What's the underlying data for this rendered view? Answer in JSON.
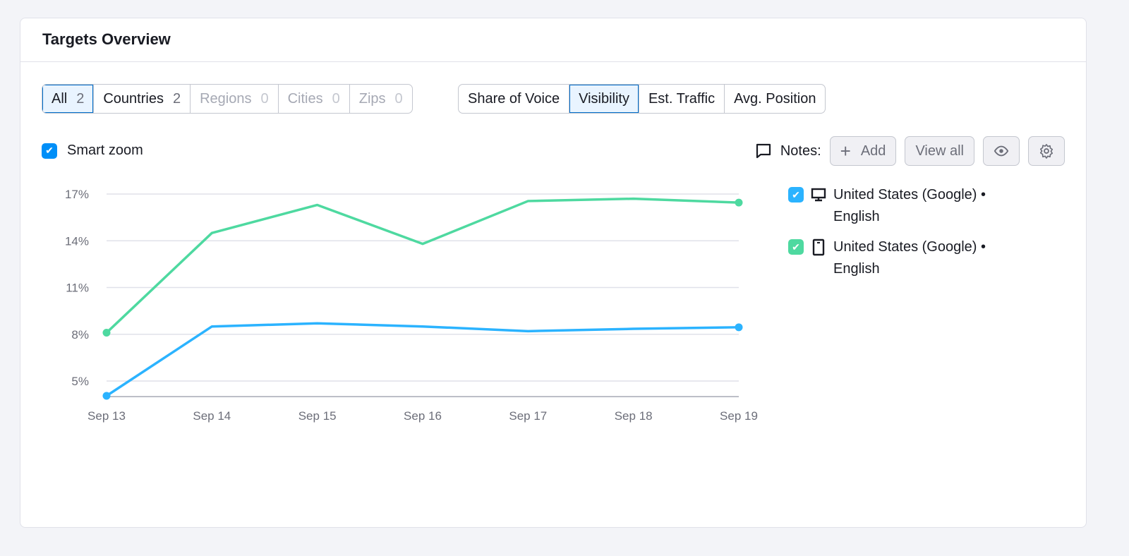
{
  "title": "Targets Overview",
  "location_tabs": [
    {
      "label": "All",
      "count": "2"
    },
    {
      "label": "Countries",
      "count": "2"
    },
    {
      "label": "Regions",
      "count": "0"
    },
    {
      "label": "Cities",
      "count": "0"
    },
    {
      "label": "Zips",
      "count": "0"
    }
  ],
  "metric_tabs": [
    "Share of Voice",
    "Visibility",
    "Est. Traffic",
    "Avg. Position"
  ],
  "selected_metric": "Visibility",
  "smart_zoom": {
    "label": "Smart zoom",
    "checked": true
  },
  "notes": {
    "label": "Notes:",
    "add": "Add",
    "view_all": "View all"
  },
  "legend": [
    {
      "name": "United States (Google) • English",
      "device": "desktop",
      "color": "#2bb3ff"
    },
    {
      "name": "United States (Google) • English",
      "device": "mobile",
      "color": "#4ed9a0"
    }
  ],
  "chart_data": {
    "type": "line",
    "x": [
      "Sep 13",
      "Sep 14",
      "Sep 15",
      "Sep 16",
      "Sep 17",
      "Sep 18",
      "Sep 19"
    ],
    "yticks": [
      "5%",
      "8%",
      "11%",
      "14%",
      "17%"
    ],
    "ytick_values": [
      5,
      8,
      11,
      14,
      17
    ],
    "ylim": [
      4,
      17
    ],
    "grid": true,
    "legend_position": "right",
    "series": [
      {
        "name": "United States (Google) • English",
        "device": "desktop",
        "color": "#2bb3ff",
        "values": [
          4.05,
          8.5,
          8.7,
          8.5,
          8.2,
          8.35,
          8.45
        ]
      },
      {
        "name": "United States (Google) • English",
        "device": "mobile",
        "color": "#4ed9a0",
        "values": [
          8.1,
          14.5,
          16.3,
          13.8,
          16.55,
          16.7,
          16.45
        ]
      }
    ]
  }
}
